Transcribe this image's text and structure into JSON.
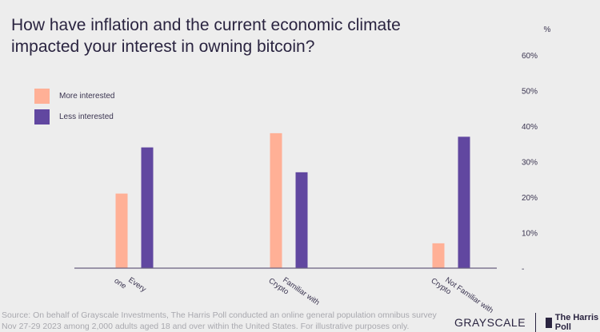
{
  "chart_data": {
    "type": "bar",
    "title": "How have inflation and the current economic climate impacted your interest in owning bitcoin?",
    "ylabel": "%",
    "ylim": [
      0,
      60
    ],
    "yticks": [
      "-",
      "10%",
      "20%",
      "30%",
      "40%",
      "50%",
      "60%"
    ],
    "categories": [
      [
        "Every",
        "one"
      ],
      [
        "Familiar with",
        "Crypto"
      ],
      [
        "Not Familiar with",
        "Crypto"
      ]
    ],
    "series": [
      {
        "name": "More interested",
        "color": "#ffb096",
        "values": [
          21,
          38,
          7
        ]
      },
      {
        "name": "Less interested",
        "color": "#6147a0",
        "values": [
          34,
          27,
          37
        ]
      }
    ],
    "legend": "top-left",
    "grid": false
  },
  "footer": {
    "source_line1": "Source: On behalf of Grayscale Investments, The Harris Poll conducted an online general population omnibus survey",
    "source_line2": "Nov 27-29 2023 among 2,000 adults aged 18 and over within the United States. For illustrative purposes only.",
    "logo_grayscale": "GRAYSCALE",
    "logo_harris": "The Harris Poll"
  }
}
